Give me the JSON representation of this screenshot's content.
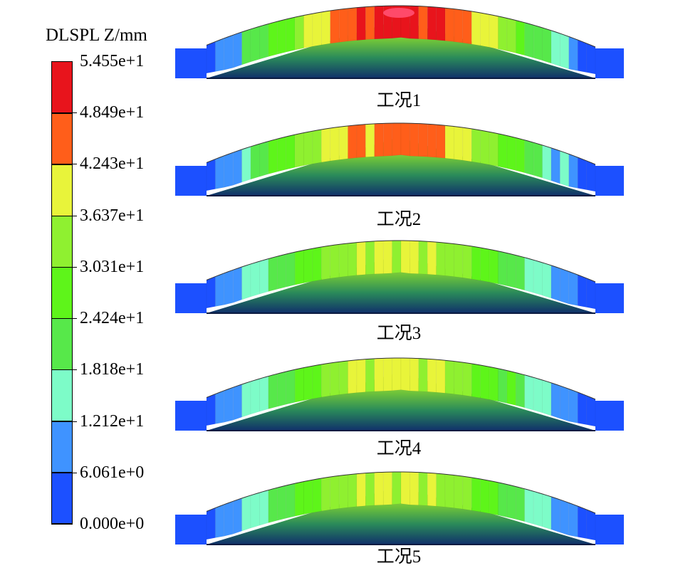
{
  "legend": {
    "title": "DLSPL Z/mm",
    "ticks": [
      "5.455e+1",
      "4.849e+1",
      "4.243e+1",
      "3.637e+1",
      "3.031e+1",
      "2.424e+1",
      "1.818e+1",
      "1.212e+1",
      "6.061e+0",
      "0.000e+0"
    ],
    "colors": [
      "#e8141c",
      "#ff5e1a",
      "#e8f43a",
      "#8ff030",
      "#5ef51a",
      "#57e84a",
      "#7dfcc8",
      "#3f93ff",
      "#1c50ff"
    ]
  },
  "cases": [
    {
      "label": "工况1",
      "peak_level": 0.95
    },
    {
      "label": "工况2",
      "peak_level": 0.85
    },
    {
      "label": "工况3",
      "peak_level": 0.7
    },
    {
      "label": "工况4",
      "peak_level": 0.72
    },
    {
      "label": "工况5",
      "peak_level": 0.7
    }
  ]
}
